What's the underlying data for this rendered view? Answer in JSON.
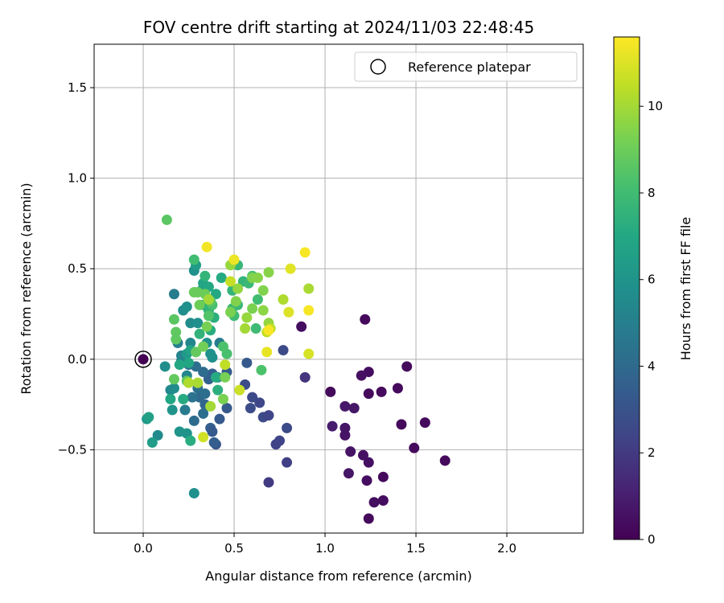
{
  "chart_data": {
    "type": "scatter",
    "title": "FOV centre drift starting at 2024/11/03 22:48:45",
    "xlabel": "Angular distance from reference (arcmin)",
    "ylabel": "Rotation from reference (arcmin)",
    "xlim": [
      -0.27,
      2.42
    ],
    "ylim": [
      -0.96,
      1.74
    ],
    "xticks": [
      0.0,
      0.5,
      1.0,
      1.5,
      2.0
    ],
    "xtick_labels": [
      "0.0",
      "0.5",
      "1.0",
      "1.5",
      "2.0"
    ],
    "yticks": [
      -0.5,
      0.0,
      0.5,
      1.0,
      1.5
    ],
    "ytick_labels": [
      "−0.5",
      "0.0",
      "0.5",
      "1.0",
      "1.5"
    ],
    "grid": true,
    "legend": {
      "position": "top-right",
      "entries": [
        "Reference platepar"
      ]
    },
    "colorbar": {
      "label": "Hours from first FF file",
      "colormap": "viridis",
      "range": [
        0,
        11.6
      ],
      "ticks": [
        0,
        2,
        4,
        6,
        8,
        10
      ],
      "tick_labels": [
        "0",
        "2",
        "4",
        "6",
        "8",
        "10"
      ]
    },
    "reference_point": {
      "x": 0.0,
      "y": 0.0,
      "hours": 0.0
    },
    "points": [
      {
        "x": 1.22,
        "y": 0.22,
        "h": 0.3
      },
      {
        "x": 0.87,
        "y": 0.18,
        "h": 0.4
      },
      {
        "x": 1.45,
        "y": -0.04,
        "h": 0.3
      },
      {
        "x": 1.24,
        "y": -0.07,
        "h": 0.4
      },
      {
        "x": 1.2,
        "y": -0.09,
        "h": 0.5
      },
      {
        "x": 1.03,
        "y": -0.18,
        "h": 0.3
      },
      {
        "x": 1.24,
        "y": -0.19,
        "h": 0.3
      },
      {
        "x": 1.31,
        "y": -0.18,
        "h": 0.3
      },
      {
        "x": 1.4,
        "y": -0.16,
        "h": 0.3
      },
      {
        "x": 1.11,
        "y": -0.26,
        "h": 0.8
      },
      {
        "x": 1.16,
        "y": -0.27,
        "h": 0.7
      },
      {
        "x": 1.04,
        "y": -0.37,
        "h": 0.9
      },
      {
        "x": 1.11,
        "y": -0.38,
        "h": 0.7
      },
      {
        "x": 1.11,
        "y": -0.42,
        "h": 0.6
      },
      {
        "x": 1.42,
        "y": -0.36,
        "h": 0.3
      },
      {
        "x": 1.55,
        "y": -0.35,
        "h": 0.3
      },
      {
        "x": 1.14,
        "y": -0.51,
        "h": 0.6
      },
      {
        "x": 1.21,
        "y": -0.53,
        "h": 0.5
      },
      {
        "x": 1.24,
        "y": -0.57,
        "h": 0.5
      },
      {
        "x": 1.49,
        "y": -0.49,
        "h": 0.3
      },
      {
        "x": 1.66,
        "y": -0.56,
        "h": 0.3
      },
      {
        "x": 1.13,
        "y": -0.63,
        "h": 0.7
      },
      {
        "x": 1.23,
        "y": -0.67,
        "h": 0.4
      },
      {
        "x": 1.32,
        "y": -0.65,
        "h": 0.3
      },
      {
        "x": 1.27,
        "y": -0.79,
        "h": 0.4
      },
      {
        "x": 1.32,
        "y": -0.78,
        "h": 0.4
      },
      {
        "x": 1.24,
        "y": -0.88,
        "h": 0.3
      },
      {
        "x": 0.89,
        "y": -0.1,
        "h": 1.8
      },
      {
        "x": 0.77,
        "y": 0.05,
        "h": 2.6
      },
      {
        "x": 0.66,
        "y": -0.32,
        "h": 2.6
      },
      {
        "x": 0.69,
        "y": -0.31,
        "h": 2.4
      },
      {
        "x": 0.6,
        "y": -0.21,
        "h": 2.6
      },
      {
        "x": 0.64,
        "y": -0.24,
        "h": 2.5
      },
      {
        "x": 0.56,
        "y": -0.14,
        "h": 2.7
      },
      {
        "x": 0.59,
        "y": -0.27,
        "h": 2.7
      },
      {
        "x": 0.75,
        "y": -0.45,
        "h": 2.4
      },
      {
        "x": 0.73,
        "y": -0.47,
        "h": 2.3
      },
      {
        "x": 0.79,
        "y": -0.38,
        "h": 2.6
      },
      {
        "x": 0.79,
        "y": -0.57,
        "h": 2.2
      },
      {
        "x": 0.69,
        "y": -0.68,
        "h": 2.0
      },
      {
        "x": 0.57,
        "y": -0.02,
        "h": 3.3
      },
      {
        "x": 0.46,
        "y": -0.27,
        "h": 3.3
      },
      {
        "x": 0.42,
        "y": -0.33,
        "h": 3.3
      },
      {
        "x": 0.37,
        "y": -0.38,
        "h": 3.5
      },
      {
        "x": 0.38,
        "y": -0.4,
        "h": 3.3
      },
      {
        "x": 0.34,
        "y": -0.25,
        "h": 3.8
      },
      {
        "x": 0.31,
        "y": -0.21,
        "h": 3.9
      },
      {
        "x": 0.4,
        "y": -0.47,
        "h": 3.1
      },
      {
        "x": 0.39,
        "y": -0.46,
        "h": 3.5
      },
      {
        "x": 0.46,
        "y": -0.07,
        "h": 3.4
      },
      {
        "x": 0.38,
        "y": -0.08,
        "h": 3.5
      },
      {
        "x": 0.36,
        "y": -0.11,
        "h": 3.6
      },
      {
        "x": 0.33,
        "y": -0.07,
        "h": 4.1
      },
      {
        "x": 0.29,
        "y": -0.04,
        "h": 4.2
      },
      {
        "x": 0.25,
        "y": -0.03,
        "h": 4.4
      },
      {
        "x": 0.21,
        "y": -0.01,
        "h": 4.6
      },
      {
        "x": 0.3,
        "y": -0.16,
        "h": 4.3
      },
      {
        "x": 0.27,
        "y": -0.21,
        "h": 4.4
      },
      {
        "x": 0.34,
        "y": -0.19,
        "h": 4.2
      },
      {
        "x": 0.28,
        "y": -0.34,
        "h": 4.1
      },
      {
        "x": 0.33,
        "y": -0.3,
        "h": 4.2
      },
      {
        "x": 0.23,
        "y": -0.28,
        "h": 4.8
      },
      {
        "x": 0.41,
        "y": -0.1,
        "h": 4.6
      },
      {
        "x": 0.42,
        "y": 0.09,
        "h": 4.8
      },
      {
        "x": 0.19,
        "y": 0.09,
        "h": 5.0
      },
      {
        "x": 0.17,
        "y": 0.36,
        "h": 4.9
      },
      {
        "x": 0.21,
        "y": 0.02,
        "h": 5.2
      },
      {
        "x": 0.26,
        "y": 0.09,
        "h": 5.3
      },
      {
        "x": 0.24,
        "y": -0.09,
        "h": 5.2
      },
      {
        "x": 0.15,
        "y": -0.17,
        "h": 5.4
      },
      {
        "x": 0.17,
        "y": -0.16,
        "h": 5.6
      },
      {
        "x": 0.12,
        "y": -0.04,
        "h": 5.7
      },
      {
        "x": 0.26,
        "y": 0.2,
        "h": 5.6
      },
      {
        "x": 0.22,
        "y": 0.27,
        "h": 5.7
      },
      {
        "x": 0.24,
        "y": 0.29,
        "h": 5.8
      },
      {
        "x": 0.3,
        "y": 0.2,
        "h": 5.8
      },
      {
        "x": 0.35,
        "y": 0.09,
        "h": 5.9
      },
      {
        "x": 0.28,
        "y": 0.49,
        "h": 5.8
      },
      {
        "x": 0.38,
        "y": 0.01,
        "h": 5.8
      },
      {
        "x": 0.37,
        "y": 0.03,
        "h": 5.9
      },
      {
        "x": 0.16,
        "y": -0.28,
        "h": 6.0
      },
      {
        "x": 0.2,
        "y": -0.4,
        "h": 6.0
      },
      {
        "x": 0.24,
        "y": -0.41,
        "h": 6.0
      },
      {
        "x": 0.08,
        "y": -0.42,
        "h": 5.5
      },
      {
        "x": 0.05,
        "y": -0.46,
        "h": 6.4
      },
      {
        "x": 0.02,
        "y": -0.33,
        "h": 6.2
      },
      {
        "x": 0.03,
        "y": -0.32,
        "h": 6.6
      },
      {
        "x": 0.28,
        "y": -0.74,
        "h": 5.8
      },
      {
        "x": 0.29,
        "y": 0.52,
        "h": 6.4
      },
      {
        "x": 0.32,
        "y": 0.38,
        "h": 6.5
      },
      {
        "x": 0.24,
        "y": 0.03,
        "h": 6.3
      },
      {
        "x": 0.26,
        "y": 0.05,
        "h": 6.8
      },
      {
        "x": 0.25,
        "y": -0.02,
        "h": 6.9
      },
      {
        "x": 0.15,
        "y": -0.22,
        "h": 6.9
      },
      {
        "x": 0.2,
        "y": -0.03,
        "h": 7.0
      },
      {
        "x": 0.22,
        "y": -0.22,
        "h": 7.1
      },
      {
        "x": 0.26,
        "y": -0.45,
        "h": 7.2
      },
      {
        "x": 0.29,
        "y": 0.04,
        "h": 7.2
      },
      {
        "x": 0.33,
        "y": 0.42,
        "h": 6.8
      },
      {
        "x": 0.4,
        "y": 0.36,
        "h": 7.0
      },
      {
        "x": 0.36,
        "y": 0.4,
        "h": 7.0
      },
      {
        "x": 0.43,
        "y": 0.45,
        "h": 7.1
      },
      {
        "x": 0.37,
        "y": 0.16,
        "h": 7.2
      },
      {
        "x": 0.4,
        "y": -0.1,
        "h": 7.1
      },
      {
        "x": 0.41,
        "y": -0.17,
        "h": 7.3
      },
      {
        "x": 0.39,
        "y": 0.23,
        "h": 7.3
      },
      {
        "x": 0.33,
        "y": 0.3,
        "h": 7.4
      },
      {
        "x": 0.36,
        "y": 0.27,
        "h": 7.5
      },
      {
        "x": 0.31,
        "y": 0.14,
        "h": 7.5
      },
      {
        "x": 0.34,
        "y": 0.46,
        "h": 7.6
      },
      {
        "x": 0.49,
        "y": 0.38,
        "h": 7.6
      },
      {
        "x": 0.52,
        "y": 0.52,
        "h": 7.7
      },
      {
        "x": 0.55,
        "y": 0.43,
        "h": 7.6
      },
      {
        "x": 0.58,
        "y": 0.42,
        "h": 7.8
      },
      {
        "x": 0.52,
        "y": 0.3,
        "h": 7.8
      },
      {
        "x": 0.49,
        "y": 0.28,
        "h": 7.9
      },
      {
        "x": 0.5,
        "y": 0.24,
        "h": 8.0
      },
      {
        "x": 0.62,
        "y": 0.17,
        "h": 7.9
      },
      {
        "x": 0.63,
        "y": 0.33,
        "h": 8.0
      },
      {
        "x": 0.6,
        "y": 0.46,
        "h": 8.1
      },
      {
        "x": 0.65,
        "y": -0.06,
        "h": 8.3
      },
      {
        "x": 0.46,
        "y": 0.03,
        "h": 8.2
      },
      {
        "x": 0.44,
        "y": 0.07,
        "h": 8.3
      },
      {
        "x": 0.38,
        "y": 0.3,
        "h": 8.2
      },
      {
        "x": 0.36,
        "y": 0.24,
        "h": 8.4
      },
      {
        "x": 0.37,
        "y": 0.32,
        "h": 8.6
      },
      {
        "x": 0.28,
        "y": 0.55,
        "h": 8.0
      },
      {
        "x": 0.13,
        "y": 0.77,
        "h": 8.6
      },
      {
        "x": 0.17,
        "y": 0.22,
        "h": 8.6
      },
      {
        "x": 0.18,
        "y": 0.15,
        "h": 8.7
      },
      {
        "x": 0.18,
        "y": 0.11,
        "h": 8.7
      },
      {
        "x": 0.17,
        "y": -0.11,
        "h": 8.8
      },
      {
        "x": 0.24,
        "y": -0.12,
        "h": 8.8
      },
      {
        "x": 0.29,
        "y": 0.04,
        "h": 8.8
      },
      {
        "x": 0.3,
        "y": 0.37,
        "h": 8.9
      },
      {
        "x": 0.34,
        "y": 0.36,
        "h": 9.0
      },
      {
        "x": 0.28,
        "y": 0.37,
        "h": 8.9
      },
      {
        "x": 0.31,
        "y": 0.3,
        "h": 9.0
      },
      {
        "x": 0.33,
        "y": 0.07,
        "h": 9.1
      },
      {
        "x": 0.35,
        "y": 0.18,
        "h": 9.2
      },
      {
        "x": 0.44,
        "y": -0.22,
        "h": 9.3
      },
      {
        "x": 0.45,
        "y": -0.1,
        "h": 9.2
      },
      {
        "x": 0.48,
        "y": 0.26,
        "h": 9.3
      },
      {
        "x": 0.51,
        "y": 0.32,
        "h": 9.4
      },
      {
        "x": 0.6,
        "y": 0.28,
        "h": 9.3
      },
      {
        "x": 0.6,
        "y": 0.45,
        "h": 9.4
      },
      {
        "x": 0.63,
        "y": 0.45,
        "h": 9.5
      },
      {
        "x": 0.66,
        "y": 0.38,
        "h": 9.4
      },
      {
        "x": 0.69,
        "y": 0.48,
        "h": 9.5
      },
      {
        "x": 0.66,
        "y": 0.27,
        "h": 9.6
      },
      {
        "x": 0.69,
        "y": 0.2,
        "h": 9.7
      },
      {
        "x": 0.52,
        "y": 0.39,
        "h": 9.7
      },
      {
        "x": 0.48,
        "y": 0.52,
        "h": 9.8
      },
      {
        "x": 0.57,
        "y": 0.23,
        "h": 9.8
      },
      {
        "x": 0.56,
        "y": 0.17,
        "h": 10.0
      },
      {
        "x": 0.36,
        "y": 0.33,
        "h": 10.0
      },
      {
        "x": 0.37,
        "y": -0.26,
        "h": 10.0
      },
      {
        "x": 0.3,
        "y": -0.13,
        "h": 10.1
      },
      {
        "x": 0.25,
        "y": -0.13,
        "h": 10.2
      },
      {
        "x": 0.91,
        "y": 0.39,
        "h": 10.1
      },
      {
        "x": 0.77,
        "y": 0.33,
        "h": 10.2
      },
      {
        "x": 0.7,
        "y": 0.17,
        "h": 10.4
      },
      {
        "x": 0.68,
        "y": 0.15,
        "h": 10.5
      },
      {
        "x": 0.45,
        "y": -0.03,
        "h": 10.5
      },
      {
        "x": 0.48,
        "y": 0.43,
        "h": 10.6
      },
      {
        "x": 0.53,
        "y": -0.17,
        "h": 10.7
      },
      {
        "x": 0.33,
        "y": -0.43,
        "h": 10.8
      },
      {
        "x": 0.91,
        "y": 0.03,
        "h": 10.9
      },
      {
        "x": 0.8,
        "y": 0.26,
        "h": 11.0
      },
      {
        "x": 0.81,
        "y": 0.5,
        "h": 11.1
      },
      {
        "x": 0.68,
        "y": 0.04,
        "h": 11.2
      },
      {
        "x": 0.5,
        "y": 0.55,
        "h": 11.3
      },
      {
        "x": 0.35,
        "y": 0.62,
        "h": 11.4
      },
      {
        "x": 0.89,
        "y": 0.59,
        "h": 11.5
      },
      {
        "x": 0.91,
        "y": 0.27,
        "h": 11.5
      },
      {
        "x": 0.69,
        "y": 0.16,
        "h": 11.5
      }
    ]
  }
}
